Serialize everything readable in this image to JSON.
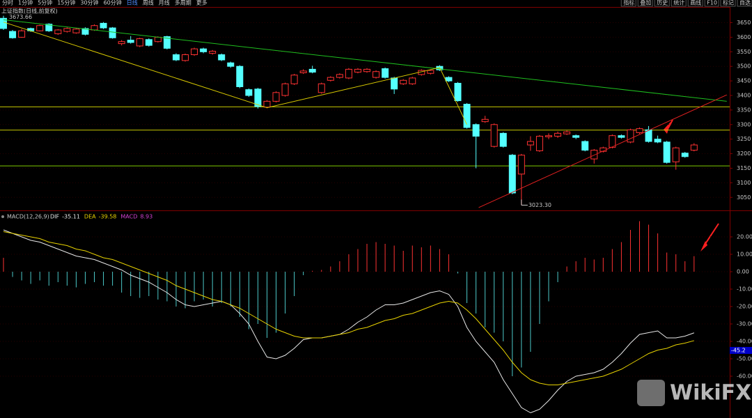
{
  "toolbar": {
    "left": [
      "分时",
      "1分钟",
      "5分钟",
      "15分钟",
      "30分钟",
      "60分钟",
      "日线",
      "周线",
      "月线",
      "多周期",
      "更多"
    ],
    "right": [
      "指标",
      "叠加",
      "历史",
      "统计",
      "画线",
      "F10",
      "标记",
      "自选"
    ]
  },
  "watermark": "WikiFX",
  "chart_data": [
    {
      "type": "candlestick",
      "title": "上证指数(日线,前复权)",
      "up_color": "#ff3232",
      "down_color": "#54ffff",
      "open": [
        3665,
        3620,
        3600,
        3630,
        3622,
        3645,
        3612,
        3620,
        3615,
        3630,
        3625,
        3648,
        3632,
        3578,
        3590,
        3570,
        3592,
        3585,
        3602,
        3540,
        3520,
        3540,
        3560,
        3545,
        3540,
        3512,
        3500,
        3420,
        3422,
        3360,
        3380,
        3400,
        3440,
        3478,
        3490,
        3410,
        3452,
        3462,
        3460,
        3480,
        3482,
        3462,
        3492,
        3460,
        3440,
        3440,
        3472,
        3476,
        3500,
        3462,
        3442,
        3370,
        3300,
        3310,
        3225,
        3270,
        3195,
        3130,
        3230,
        3210,
        3258,
        3260,
        3268,
        3262,
        3242,
        3182,
        3208,
        3222,
        3262,
        3240,
        3272,
        3282,
        3250,
        3240,
        3172,
        3202,
        3212
      ],
      "high": [
        3673.66,
        3625,
        3628,
        3633,
        3643,
        3648,
        3628,
        3634,
        3632,
        3634,
        3644,
        3652,
        3635,
        3590,
        3604,
        3598,
        3596,
        3603,
        3605,
        3545,
        3544,
        3564,
        3564,
        3556,
        3544,
        3516,
        3504,
        3424,
        3426,
        3384,
        3414,
        3444,
        3474,
        3490,
        3502,
        3444,
        3466,
        3476,
        3494,
        3494,
        3494,
        3486,
        3496,
        3464,
        3456,
        3464,
        3490,
        3490,
        3504,
        3466,
        3446,
        3374,
        3304,
        3330,
        3304,
        3274,
        3199,
        3199,
        3260,
        3264,
        3270,
        3276,
        3280,
        3266,
        3246,
        3216,
        3224,
        3266,
        3266,
        3286,
        3290,
        3295,
        3262,
        3244,
        3224,
        3206,
        3236
      ],
      "low": [
        3625,
        3595,
        3598,
        3618,
        3620,
        3618,
        3608,
        3616,
        3612,
        3606,
        3622,
        3628,
        3595,
        3572,
        3578,
        3566,
        3568,
        3582,
        3558,
        3518,
        3516,
        3536,
        3545,
        3540,
        3518,
        3495,
        3425,
        3395,
        3355,
        3356,
        3376,
        3396,
        3436,
        3474,
        3476,
        3406,
        3448,
        3458,
        3456,
        3476,
        3478,
        3458,
        3458,
        3405,
        3436,
        3436,
        3468,
        3472,
        3484,
        3446,
        3378,
        3286,
        3150,
        3306,
        3221,
        3221,
        3061,
        3023.3,
        3210,
        3206,
        3250,
        3254,
        3264,
        3250,
        3208,
        3166,
        3204,
        3218,
        3252,
        3236,
        3268,
        3238,
        3236,
        3166,
        3145,
        3186,
        3208
      ],
      "close": [
        3630,
        3598,
        3622,
        3622,
        3640,
        3622,
        3625,
        3630,
        3628,
        3610,
        3640,
        3632,
        3598,
        3585,
        3582,
        3595,
        3572,
        3600,
        3562,
        3522,
        3540,
        3560,
        3550,
        3552,
        3522,
        3500,
        3430,
        3400,
        3362,
        3380,
        3410,
        3440,
        3470,
        3484,
        3480,
        3440,
        3462,
        3472,
        3490,
        3490,
        3490,
        3482,
        3462,
        3422,
        3452,
        3460,
        3486,
        3486,
        3488,
        3450,
        3382,
        3290,
        3260,
        3318,
        3300,
        3225,
        3065,
        3195,
        3242,
        3260,
        3262,
        3270,
        3275,
        3256,
        3212,
        3212,
        3220,
        3262,
        3256,
        3282,
        3286,
        3242,
        3240,
        3170,
        3220,
        3190,
        3230
      ],
      "annotations": [
        {
          "value": 3673.66,
          "label": "3673.66",
          "at": 0
        },
        {
          "value": 3023.3,
          "label": "3023.30",
          "at": 57
        }
      ],
      "trendlines": [
        {
          "color": "#1fbf1f",
          "points": [
            [
              0,
              3660
            ],
            [
              79.6,
              3380
            ]
          ]
        },
        {
          "color": "#d8c800",
          "points": [
            [
              0,
              3652
            ],
            [
              29,
              3358
            ],
            [
              48,
              3496
            ],
            [
              51,
              3300
            ]
          ]
        },
        {
          "color": "#e02020",
          "points": [
            [
              52.3,
              3015
            ],
            [
              79.6,
              3402
            ]
          ]
        }
      ],
      "hlines": [
        {
          "value": 3361,
          "color": "#c8c800"
        },
        {
          "value": 3281,
          "color": "#c8c800"
        },
        {
          "value": 3158,
          "color": "#7fc800"
        }
      ],
      "ylim": [
        3010,
        3680
      ],
      "yticks": [
        3050,
        3100,
        3150,
        3200,
        3250,
        3300,
        3350,
        3400,
        3450,
        3500,
        3550,
        3600,
        3650
      ]
    },
    {
      "type": "macd",
      "title": "MACD(12,26,9)",
      "series": [
        {
          "name": "DIF",
          "color": "#e8e8e8",
          "values": [
            24,
            22,
            20,
            18,
            17,
            15,
            13,
            11,
            9,
            8,
            7,
            5,
            3,
            1,
            -2,
            -4,
            -6,
            -9,
            -12,
            -16,
            -19,
            -20,
            -19,
            -18,
            -17,
            -19,
            -24,
            -30,
            -40,
            -49,
            -50,
            -48,
            -44,
            -39,
            -38,
            -38,
            -37,
            -36,
            -33,
            -29,
            -26,
            -22,
            -19,
            -19,
            -18,
            -16,
            -14,
            -12,
            -11,
            -13,
            -20,
            -32,
            -40,
            -46,
            -52,
            -62,
            -70,
            -78,
            -81,
            -79,
            -74,
            -68,
            -63,
            -60,
            -59,
            -58,
            -56,
            -52,
            -47,
            -41,
            -36,
            -35,
            -34,
            -38,
            -38,
            -37,
            -35.11
          ]
        },
        {
          "name": "DEA",
          "color": "#e8d200",
          "values": [
            23,
            22,
            21,
            20,
            19,
            17,
            16,
            15,
            13,
            12,
            10,
            8,
            7,
            5,
            3,
            1,
            -1,
            -3,
            -5,
            -8,
            -10,
            -12,
            -14,
            -16,
            -17,
            -19,
            -21,
            -24,
            -27,
            -30,
            -33,
            -35,
            -37,
            -38,
            -38,
            -38,
            -37,
            -36,
            -35,
            -33,
            -32,
            -30,
            -28,
            -27,
            -25,
            -24,
            -22,
            -20,
            -18,
            -17,
            -18,
            -22,
            -27,
            -33,
            -39,
            -45,
            -52,
            -58,
            -62,
            -64,
            -65,
            -65,
            -64,
            -63,
            -62,
            -61,
            -60,
            -58,
            -56,
            -53,
            -50,
            -47,
            -45,
            -44,
            -42,
            -41,
            -39.58
          ]
        },
        {
          "name": "MACD",
          "color": "#d040d0",
          "up_color": "#ff3232",
          "down_color": "#4cc8c8",
          "values": [
            8,
            -3,
            -5,
            -7,
            -5,
            -8,
            -6,
            -8,
            -9,
            -7,
            -6,
            -8,
            -8,
            -12,
            -14,
            -15,
            -14,
            -16,
            -17,
            -20,
            -21,
            -17,
            -16,
            -20,
            -18,
            -20,
            -26,
            -33,
            -30,
            -38,
            -35,
            -24,
            -14,
            -2,
            0.5,
            1,
            3,
            6,
            10,
            13,
            16,
            17,
            16,
            15,
            12,
            15,
            14,
            15,
            13,
            10,
            -1,
            -18,
            -24,
            -32,
            -35,
            -40,
            -60,
            -55,
            -46,
            -30,
            -17,
            -6,
            3,
            6,
            8,
            7,
            8,
            13,
            17,
            24,
            29,
            27,
            22,
            11,
            10,
            6,
            8.93
          ]
        }
      ],
      "marker": -45.2,
      "ylim": [
        -84,
        34
      ],
      "yticks": [
        {
          "value": 20,
          "label": "20.00"
        },
        {
          "value": 10,
          "label": "10.00"
        },
        {
          "value": 0,
          "label": "0.00"
        },
        {
          "value": -10,
          "label": "-10.00"
        },
        {
          "value": -20,
          "label": "-20.00"
        },
        {
          "value": -30,
          "label": "-30.00"
        },
        {
          "value": -40,
          "label": "-40.00"
        },
        {
          "value": -50,
          "label": "-50.00"
        },
        {
          "value": -60,
          "label": "-60.00"
        }
      ]
    }
  ]
}
